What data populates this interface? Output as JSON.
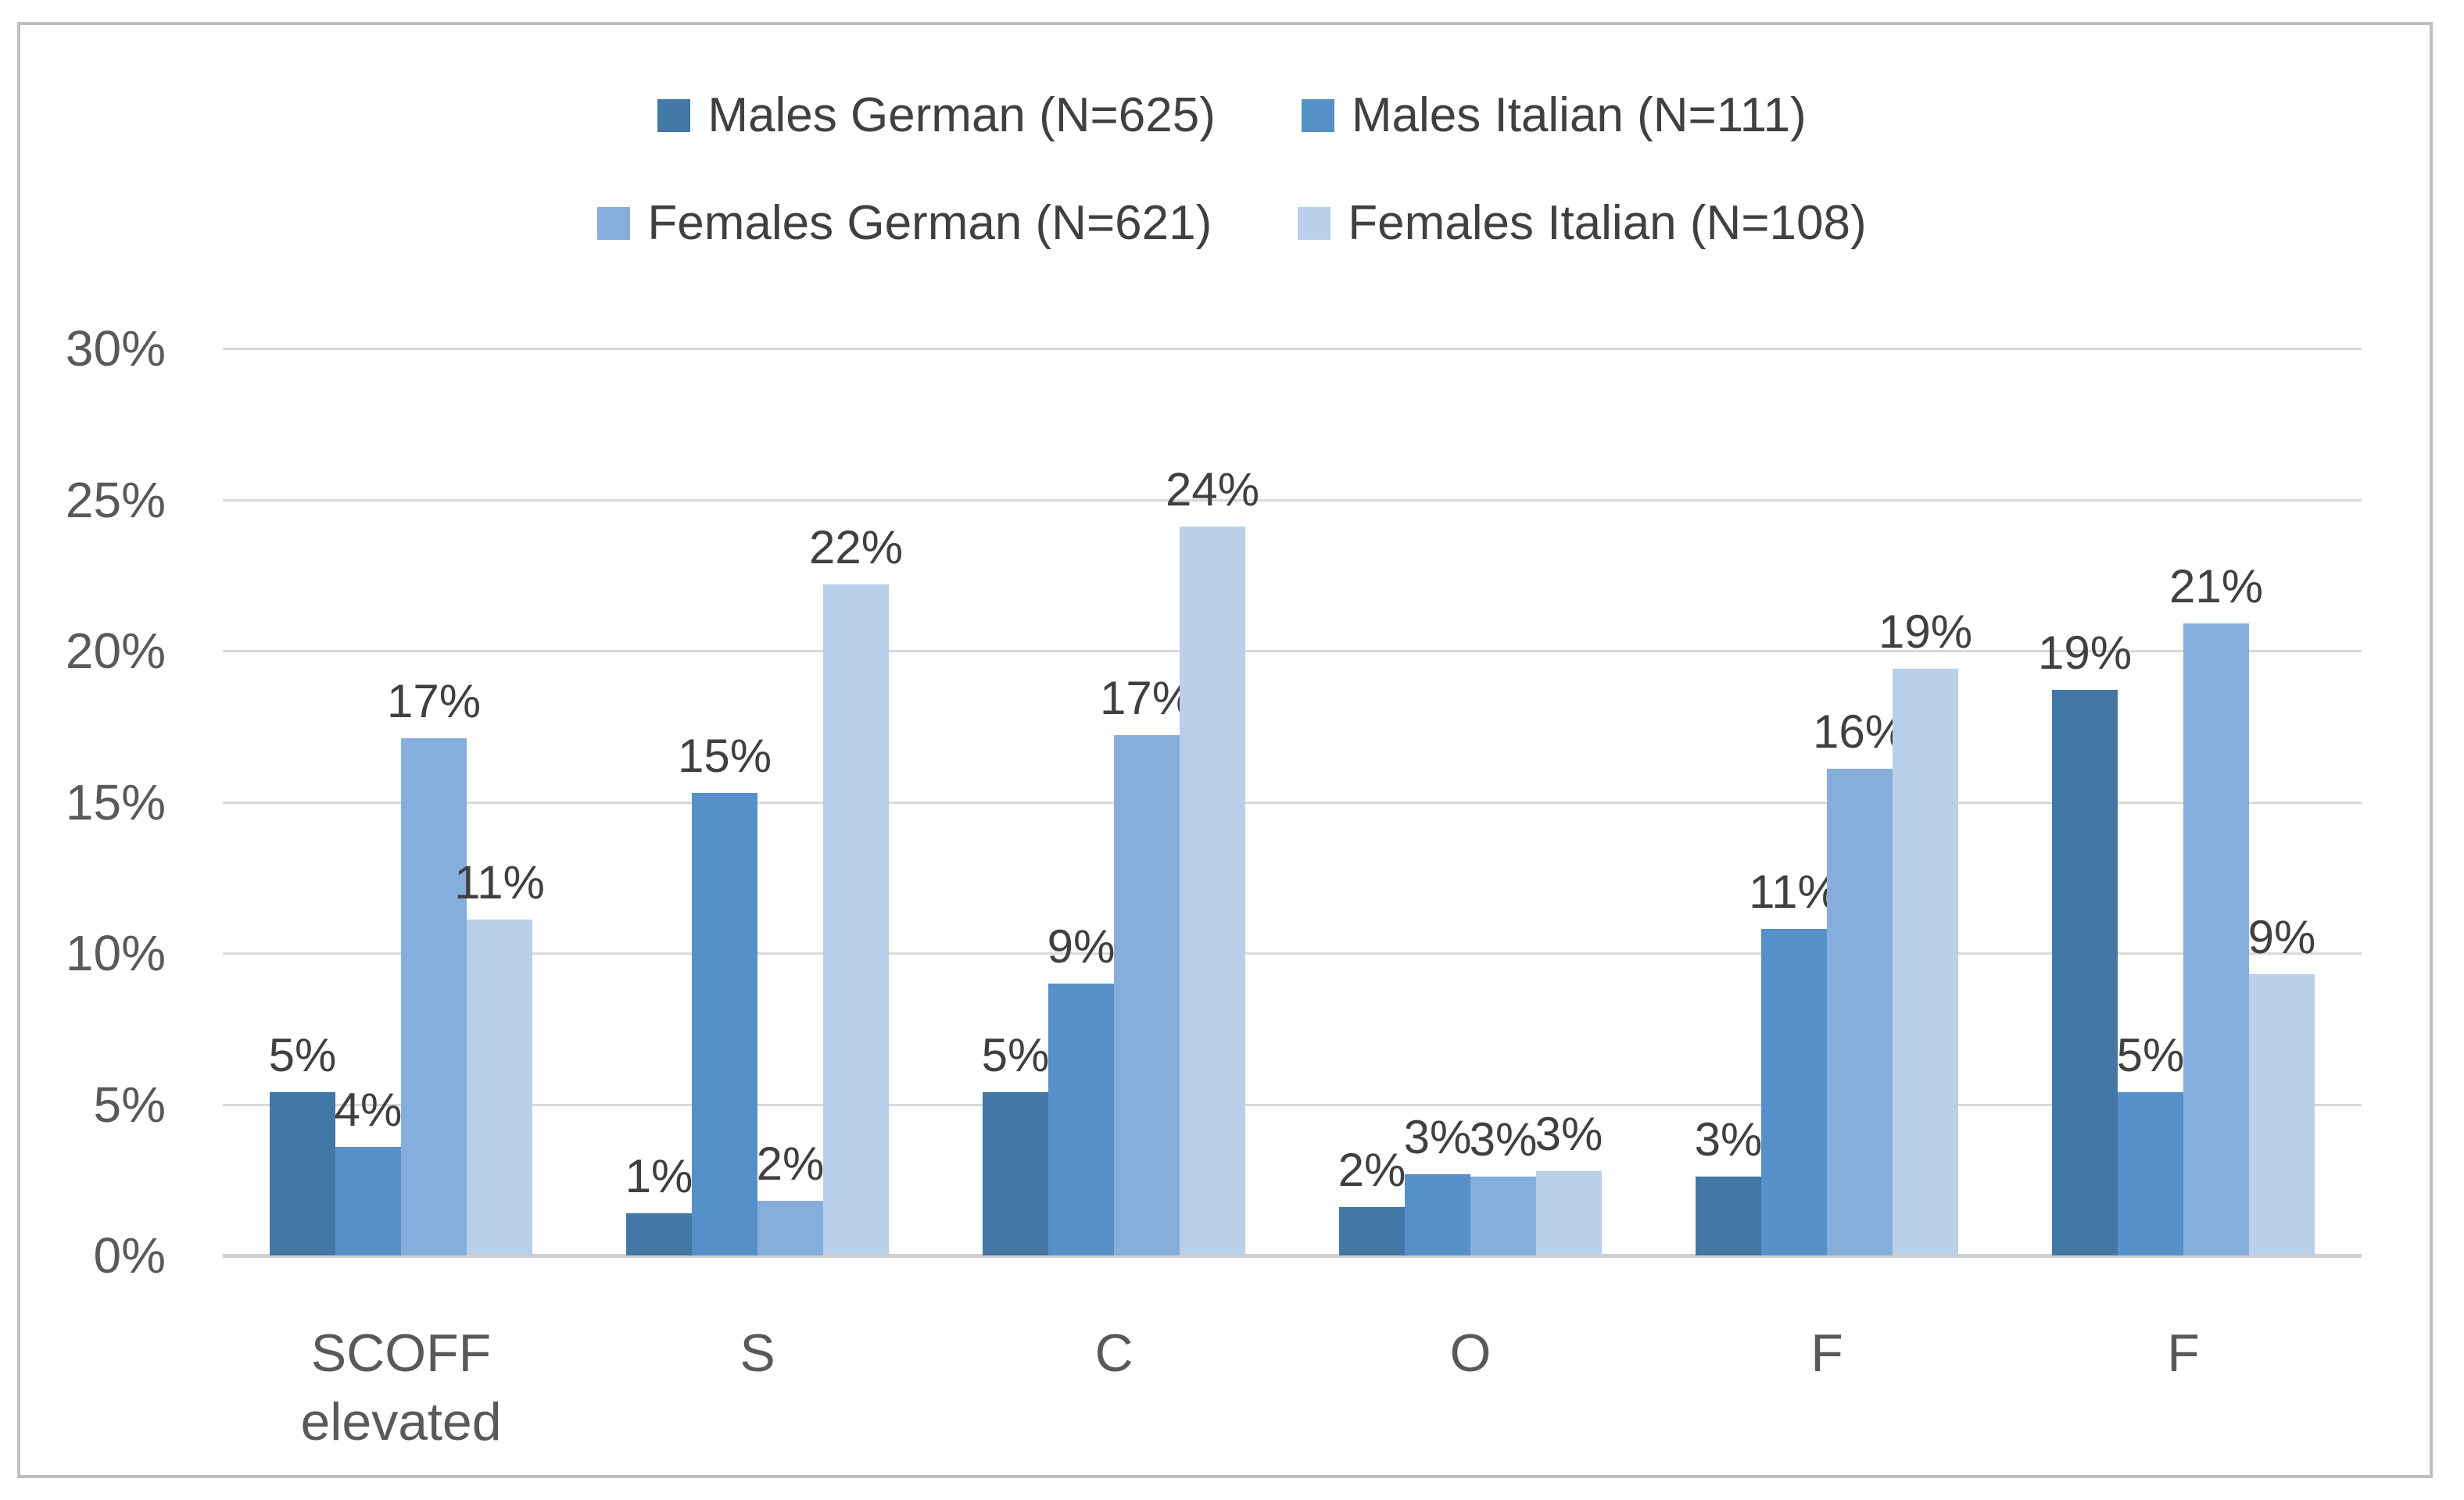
{
  "chart_data": {
    "type": "bar",
    "title": "",
    "xlabel": "",
    "ylabel": "",
    "ylim": [
      0,
      30
    ],
    "grid": true,
    "legend_position": "top",
    "y_ticks": [
      "0%",
      "5%",
      "10%",
      "15%",
      "20%",
      "25%",
      "30%"
    ],
    "categories": [
      "SCOFF elevated",
      "S",
      "C",
      "O",
      "F",
      "F"
    ],
    "series": [
      {
        "name": "Males German (N=625)",
        "color": "#4377A6",
        "values": [
          5.4,
          1.4,
          5.4,
          1.6,
          2.6,
          18.7
        ],
        "labels": [
          "5%",
          "1%",
          "5%",
          "2%",
          "3%",
          "19%"
        ]
      },
      {
        "name": "Males Italian (N=111)",
        "color": "#5590C8",
        "values": [
          3.6,
          15.3,
          9.0,
          2.7,
          10.8,
          5.4
        ],
        "labels": [
          "4%",
          "15%",
          "9%",
          "3%",
          "11%",
          "5%"
        ]
      },
      {
        "name": "Females German (N=621)",
        "color": "#86AEDC",
        "values": [
          17.1,
          1.8,
          17.2,
          2.6,
          16.1,
          20.9
        ],
        "labels": [
          "17%",
          "2%",
          "17%",
          "3%",
          "16%",
          "21%"
        ]
      },
      {
        "name": "Females Italian (N=108)",
        "color": "#BACFE9",
        "values": [
          11.1,
          22.2,
          24.1,
          2.8,
          19.4,
          9.3
        ],
        "labels": [
          "11%",
          "22%",
          "24%",
          "3%",
          "19%",
          "9%"
        ]
      }
    ],
    "style": {
      "gridline_color": "#D9D9D9",
      "baseline_color": "#CFCFCF",
      "frame_border_color": "#BFBFBF",
      "axis_text_color": "#595959",
      "label_text_color": "#404040"
    }
  }
}
